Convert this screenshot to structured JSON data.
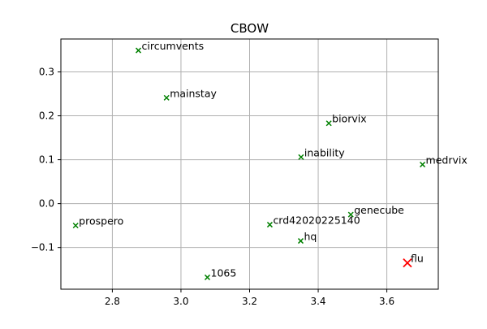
{
  "chart_data": {
    "type": "scatter",
    "title": "CBOW",
    "xlabel": "",
    "ylabel": "",
    "xlim": [
      2.65,
      3.75
    ],
    "ylim": [
      -0.195,
      0.375
    ],
    "xticks": [
      2.8,
      3.0,
      3.2,
      3.4,
      3.6
    ],
    "xtick_labels": [
      "2.8",
      "3.0",
      "3.2",
      "3.4",
      "3.6"
    ],
    "yticks": [
      -0.1,
      0.0,
      0.1,
      0.2,
      0.3
    ],
    "ytick_labels": [
      "−0.1",
      "0.0",
      "0.1",
      "0.2",
      "0.3"
    ],
    "grid": true,
    "marker": "x",
    "points": [
      {
        "label": "circumvents",
        "x": 2.876,
        "y": 0.349,
        "color": "#008000",
        "highlight": false
      },
      {
        "label": "mainstay",
        "x": 2.958,
        "y": 0.241,
        "color": "#008000",
        "highlight": false
      },
      {
        "label": "biorvix",
        "x": 3.431,
        "y": 0.183,
        "color": "#008000",
        "highlight": false
      },
      {
        "label": "inability",
        "x": 3.35,
        "y": 0.106,
        "color": "#008000",
        "highlight": false
      },
      {
        "label": "medrvix",
        "x": 3.704,
        "y": 0.089,
        "color": "#008000",
        "highlight": false
      },
      {
        "label": "genecube",
        "x": 3.495,
        "y": -0.025,
        "color": "#008000",
        "highlight": false
      },
      {
        "label": "prospero",
        "x": 2.693,
        "y": -0.05,
        "color": "#008000",
        "highlight": false
      },
      {
        "label": "crd42020225140",
        "x": 3.259,
        "y": -0.048,
        "color": "#008000",
        "highlight": false
      },
      {
        "label": "hq",
        "x": 3.349,
        "y": -0.085,
        "color": "#008000",
        "highlight": false
      },
      {
        "label": "1065",
        "x": 3.077,
        "y": -0.168,
        "color": "#008000",
        "highlight": false
      },
      {
        "label": "flu",
        "x": 3.66,
        "y": -0.135,
        "color": "#ff0000",
        "highlight": true
      }
    ]
  }
}
